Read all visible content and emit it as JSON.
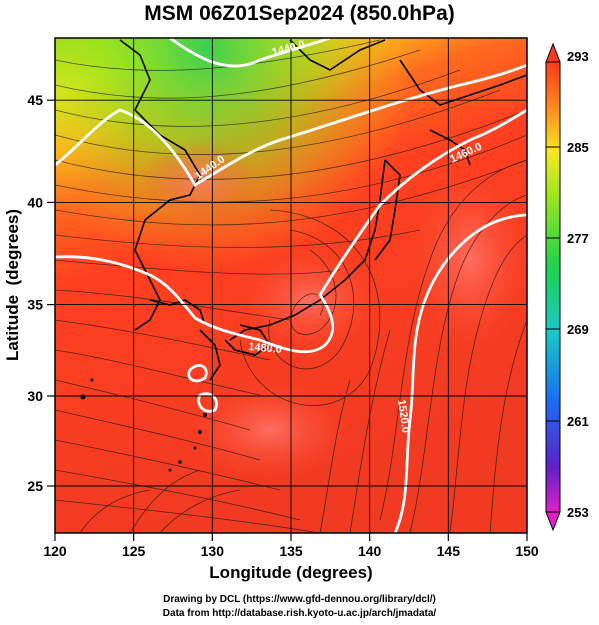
{
  "title": "MSM 06Z01Sep2024 (850.0hPa)",
  "axes": {
    "xlabel": "Longitude (degrees)",
    "ylabel": "Latitude  (degrees)",
    "xticks": [
      "120",
      "125",
      "130",
      "135",
      "140",
      "145",
      "150"
    ],
    "yticks": [
      "25",
      "30",
      "35",
      "40",
      "45"
    ]
  },
  "colorbar": {
    "labels": [
      "293",
      "285",
      "277",
      "269",
      "261",
      "253"
    ],
    "min": 253,
    "max": 293
  },
  "contours": {
    "labels": [
      "1440.0",
      "1440.0",
      "1460.0",
      "1480.0",
      "1520.0"
    ]
  },
  "credits": {
    "line1": "Drawing by DCL (https://www.gfd-dennou.org/library/dcl/)",
    "line2": "Data from http://database.rish.kyoto-u.ac.jp/arch/jmadata/"
  },
  "colors": {
    "background_warm": "#ff3c1e",
    "background_cool": "#a8e61e",
    "contour": "#ffffff",
    "grid": "#000000"
  },
  "chart_data": {
    "type": "heatmap",
    "title": "MSM 06Z01Sep2024 (850.0hPa)",
    "xlabel": "Longitude (degrees)",
    "ylabel": "Latitude  (degrees)",
    "xlim": [
      120,
      150
    ],
    "ylim": [
      22.4,
      47.6
    ],
    "colorbar_range": [
      253,
      293
    ]
  }
}
